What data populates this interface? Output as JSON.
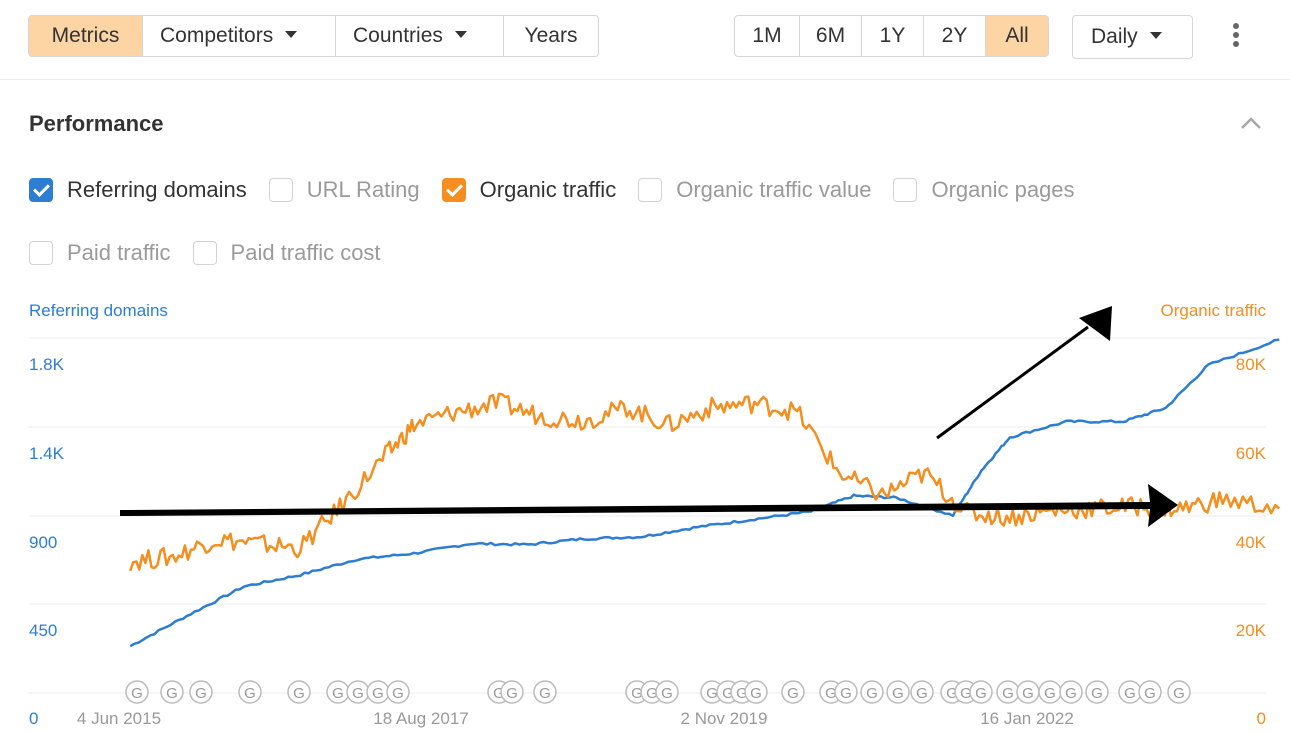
{
  "toolbar": {
    "tabs": [
      "Metrics",
      "Competitors",
      "Countries",
      "Years"
    ],
    "ranges": [
      "1M",
      "6M",
      "1Y",
      "2Y",
      "All"
    ],
    "interval": "Daily",
    "active_color": "#fdd5a4"
  },
  "card": {
    "title": "Performance"
  },
  "metrics_row1": [
    {
      "label": "Referring domains",
      "checked": true
    },
    {
      "label": "URL Rating",
      "checked": false
    },
    {
      "label": "Organic traffic",
      "checked": true
    },
    {
      "label": "Organic traffic value",
      "checked": false
    },
    {
      "label": "Organic pages",
      "checked": false
    }
  ],
  "metrics_row2": [
    {
      "label": "Paid traffic",
      "checked": false
    },
    {
      "label": "Paid traffic cost",
      "checked": false
    }
  ],
  "chart_data": {
    "type": "line",
    "left_axis": {
      "label": "Referring domains",
      "ticks": [
        "1.8K",
        "1.4K",
        "900",
        "450",
        "0"
      ],
      "color": "#2d7dd2"
    },
    "right_axis": {
      "label": "Organic traffic",
      "ticks": [
        "80K",
        "60K",
        "40K",
        "20K",
        "0"
      ],
      "color": "#f58e1e"
    },
    "x_ticks": [
      "4 Jun 2015",
      "18 Aug 2017",
      "2 Nov 2019",
      "16 Jan 2022"
    ],
    "ylim_left": [
      0,
      1800
    ],
    "ylim_right": [
      0,
      80000
    ],
    "x_years": [
      2014.9,
      2023.3
    ],
    "grid": true,
    "series": [
      {
        "name": "Referring domains",
        "axis": "left",
        "color": "#2d7dd2",
        "x": [
          2015.0,
          2015.4,
          2015.8,
          2016.2,
          2016.6,
          2017.0,
          2017.4,
          2017.8,
          2018.2,
          2018.6,
          2019.0,
          2019.4,
          2019.8,
          2020.1,
          2020.4,
          2020.8,
          2021.0,
          2021.2,
          2021.6,
          2022.0,
          2022.3,
          2022.6,
          2023.1
        ],
        "y": [
          240,
          395,
          545,
          605,
          685,
          715,
          765,
          760,
          790,
          800,
          850,
          890,
          930,
          1010,
          1000,
          910,
          1140,
          1310,
          1390,
          1390,
          1460,
          1680,
          1810
        ]
      },
      {
        "name": "Organic traffic",
        "axis": "right",
        "color": "#f58e1e",
        "x": [
          2015.0,
          2015.3,
          2015.6,
          2015.9,
          2016.2,
          2016.5,
          2016.8,
          2017.0,
          2017.3,
          2017.6,
          2017.9,
          2018.2,
          2018.5,
          2018.8,
          2019.1,
          2019.4,
          2019.7,
          2020.0,
          2020.3,
          2020.6,
          2020.9,
          2021.2,
          2021.5,
          2021.8,
          2022.1,
          2022.4,
          2022.7,
          2023.1
        ],
        "y": [
          30000,
          31000,
          35000,
          34000,
          33000,
          43000,
          54000,
          61000,
          64000,
          66000,
          63000,
          62000,
          65000,
          61000,
          65000,
          66000,
          64000,
          50000,
          45000,
          50000,
          41000,
          40000,
          41500,
          42000,
          42500,
          42000,
          44000,
          42000
        ]
      }
    ],
    "annotation_markers": "G",
    "trend_arrows": true
  }
}
